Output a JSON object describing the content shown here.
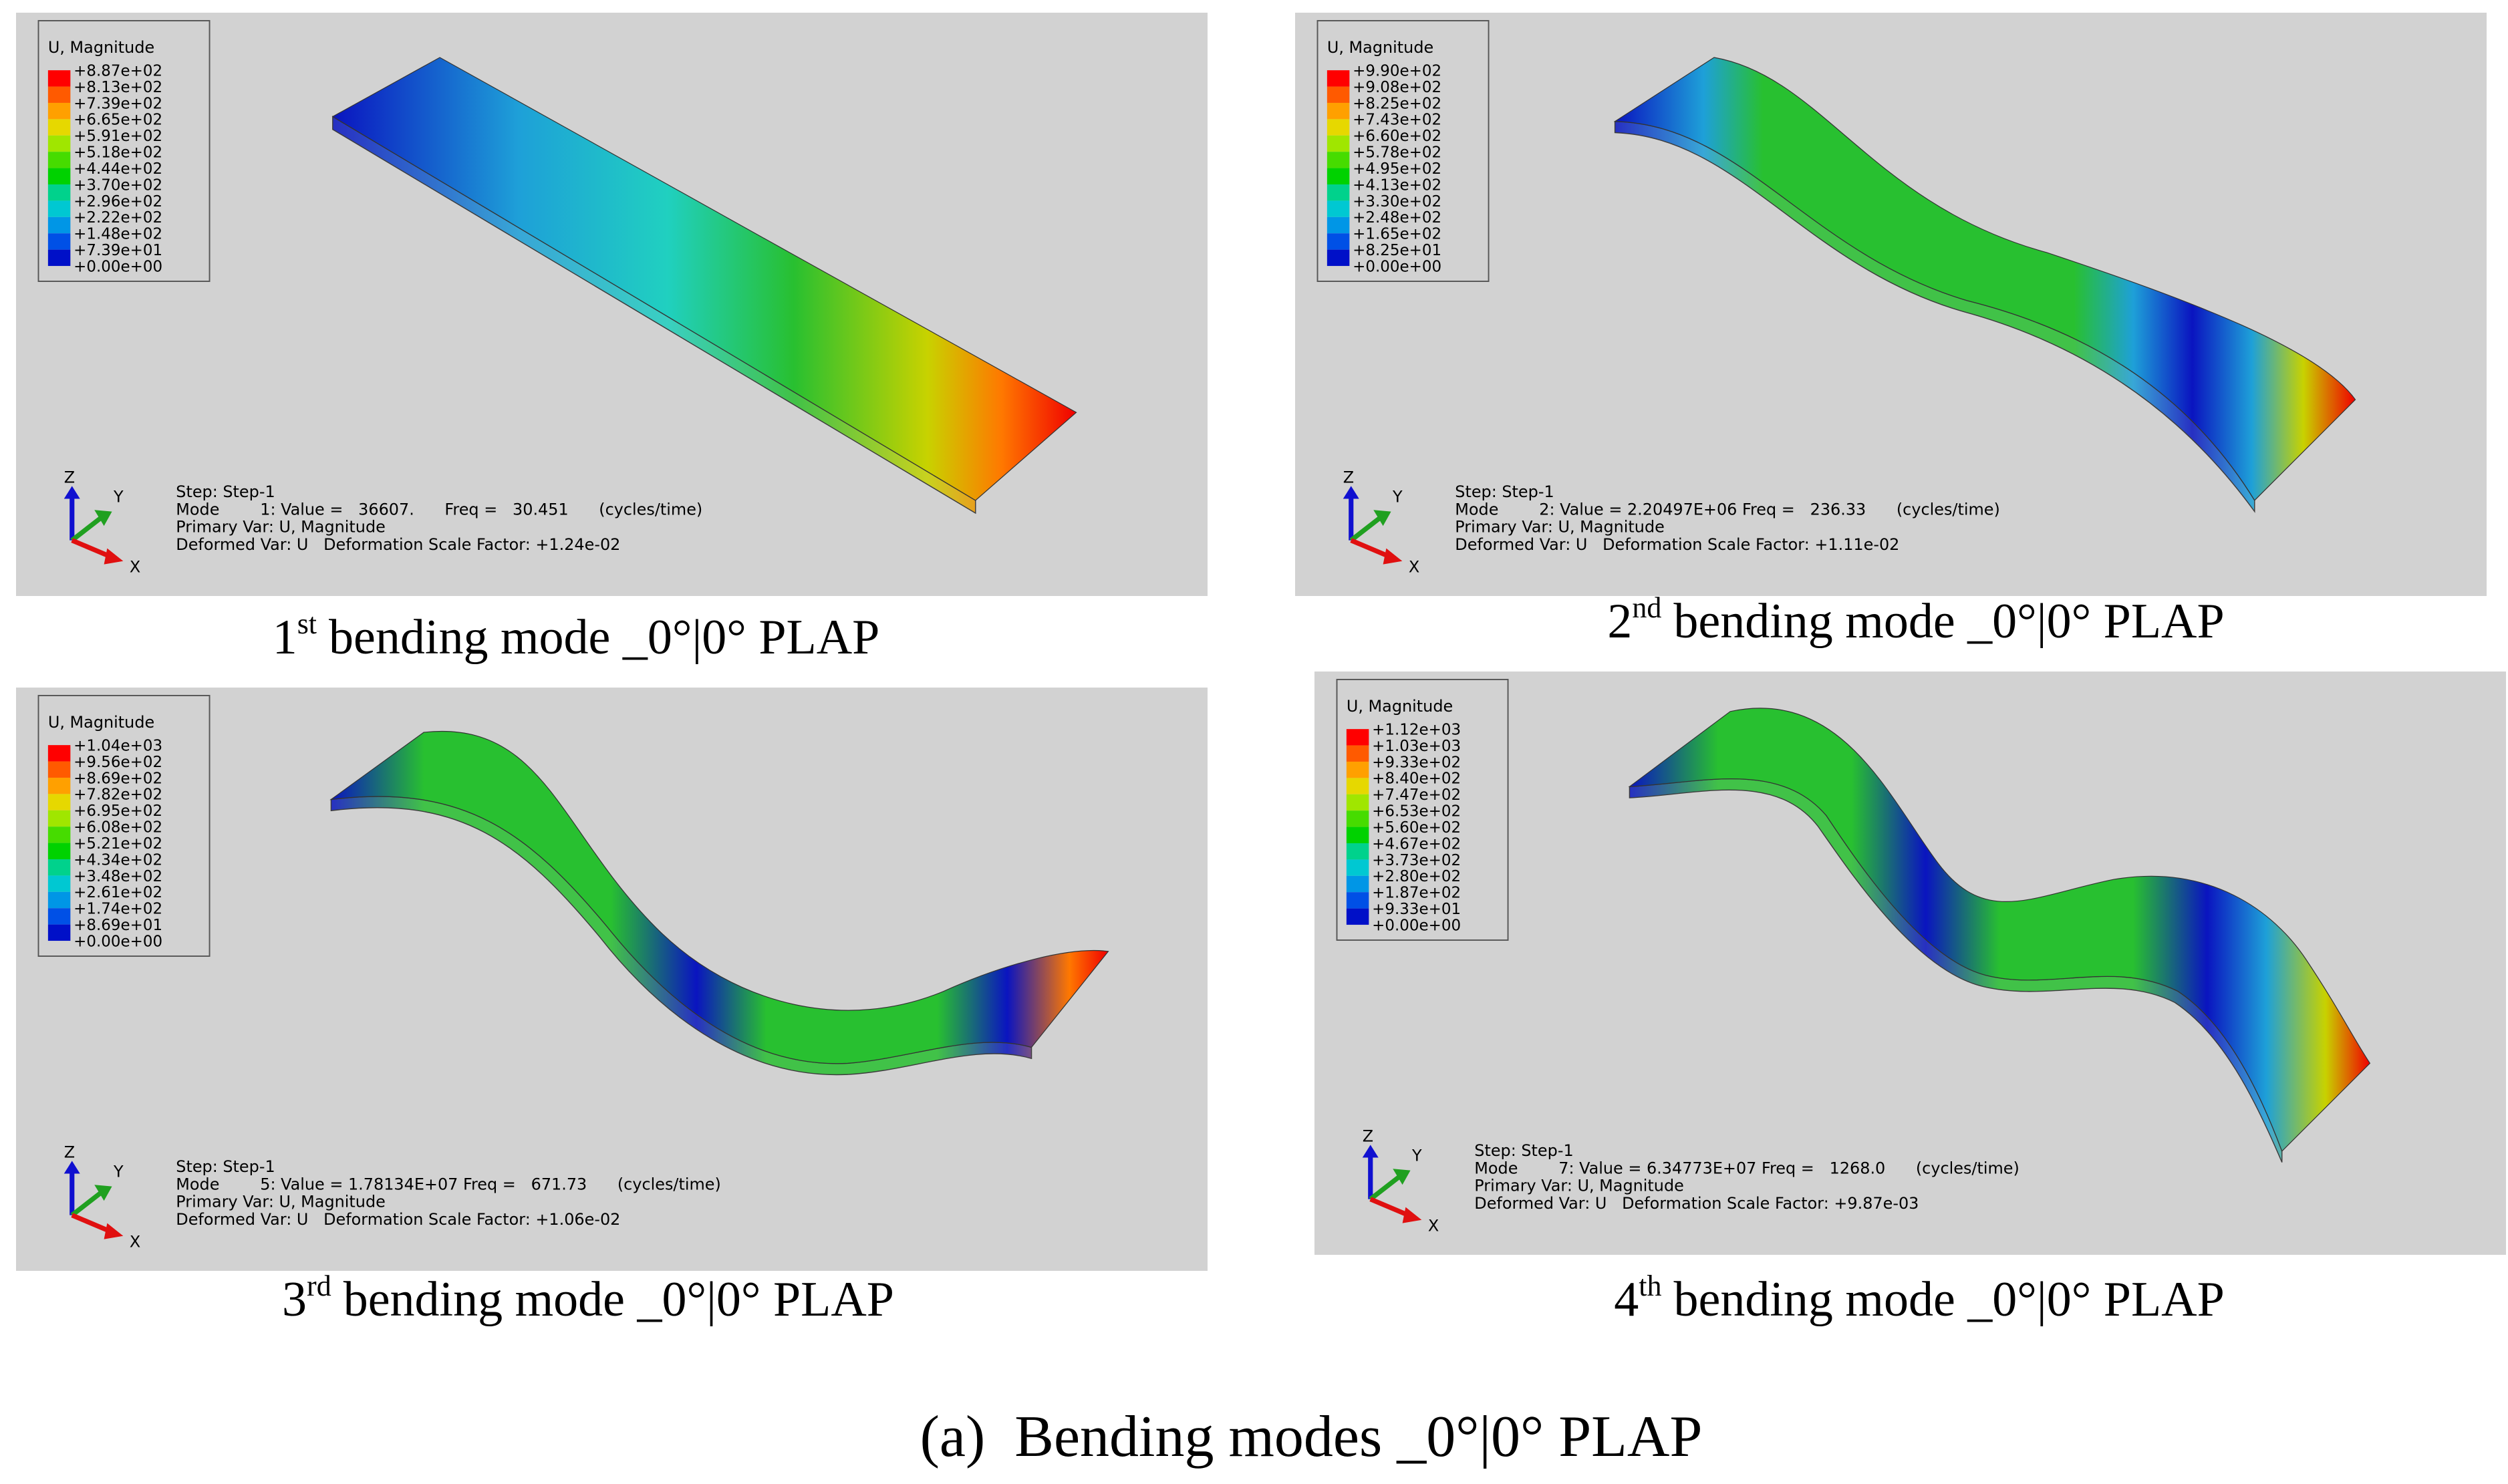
{
  "panels": [
    {
      "legend": {
        "title": "U, Magnitude",
        "labels": [
          "+8.87e+02",
          "+8.13e+02",
          "+7.39e+02",
          "+6.65e+02",
          "+5.91e+02",
          "+5.18e+02",
          "+4.44e+02",
          "+3.70e+02",
          "+2.96e+02",
          "+2.22e+02",
          "+1.48e+02",
          "+7.39e+01",
          "+0.00e+00"
        ]
      },
      "info": [
        "Step: Step-1",
        "Mode        1: Value =   36607.      Freq =   30.451      (cycles/time)",
        "Primary Var: U, Magnitude",
        "Deformed Var: U   Deformation Scale Factor: +1.24e-02"
      ],
      "triad": {
        "z": "Z",
        "y": "Y",
        "x": "X"
      },
      "caption": {
        "number": "1",
        "suffix": "st",
        "text": "bending mode _0°|0° PLAP"
      }
    },
    {
      "legend": {
        "title": "U, Magnitude",
        "labels": [
          "+9.90e+02",
          "+9.08e+02",
          "+8.25e+02",
          "+7.43e+02",
          "+6.60e+02",
          "+5.78e+02",
          "+4.95e+02",
          "+4.13e+02",
          "+3.30e+02",
          "+2.48e+02",
          "+1.65e+02",
          "+8.25e+01",
          "+0.00e+00"
        ]
      },
      "info": [
        "Step: Step-1",
        "Mode        2: Value = 2.20497E+06 Freq =   236.33      (cycles/time)",
        "Primary Var: U, Magnitude",
        "Deformed Var: U   Deformation Scale Factor: +1.11e-02"
      ],
      "triad": {
        "z": "Z",
        "y": "Y",
        "x": "X"
      },
      "caption": {
        "number": "2",
        "suffix": "nd",
        "text": "bending mode _0°|0° PLAP"
      }
    },
    {
      "legend": {
        "title": "U, Magnitude",
        "labels": [
          "+1.04e+03",
          "+9.56e+02",
          "+8.69e+02",
          "+7.82e+02",
          "+6.95e+02",
          "+6.08e+02",
          "+5.21e+02",
          "+4.34e+02",
          "+3.48e+02",
          "+2.61e+02",
          "+1.74e+02",
          "+8.69e+01",
          "+0.00e+00"
        ]
      },
      "info": [
        "Step: Step-1",
        "Mode        5: Value = 1.78134E+07 Freq =   671.73      (cycles/time)",
        "Primary Var: U, Magnitude",
        "Deformed Var: U   Deformation Scale Factor: +1.06e-02"
      ],
      "triad": {
        "z": "Z",
        "y": "Y",
        "x": "X"
      },
      "caption": {
        "number": "3",
        "suffix": "rd",
        "text": "bending mode _0°|0° PLAP"
      }
    },
    {
      "legend": {
        "title": "U, Magnitude",
        "labels": [
          "+1.12e+03",
          "+1.03e+03",
          "+9.33e+02",
          "+8.40e+02",
          "+7.47e+02",
          "+6.53e+02",
          "+5.60e+02",
          "+4.67e+02",
          "+3.73e+02",
          "+2.80e+02",
          "+1.87e+02",
          "+9.33e+01",
          "+0.00e+00"
        ]
      },
      "info": [
        "Step: Step-1",
        "Mode        7: Value = 6.34773E+07 Freq =   1268.0      (cycles/time)",
        "Primary Var: U, Magnitude",
        "Deformed Var: U   Deformation Scale Factor: +9.87e-03"
      ],
      "triad": {
        "z": "Z",
        "y": "Y",
        "x": "X"
      },
      "caption": {
        "number": "4",
        "suffix": "th",
        "text": "bending mode _0°|0° PLAP"
      }
    }
  ],
  "caption": "(a)  Bending modes _0°|0° PLAP"
}
